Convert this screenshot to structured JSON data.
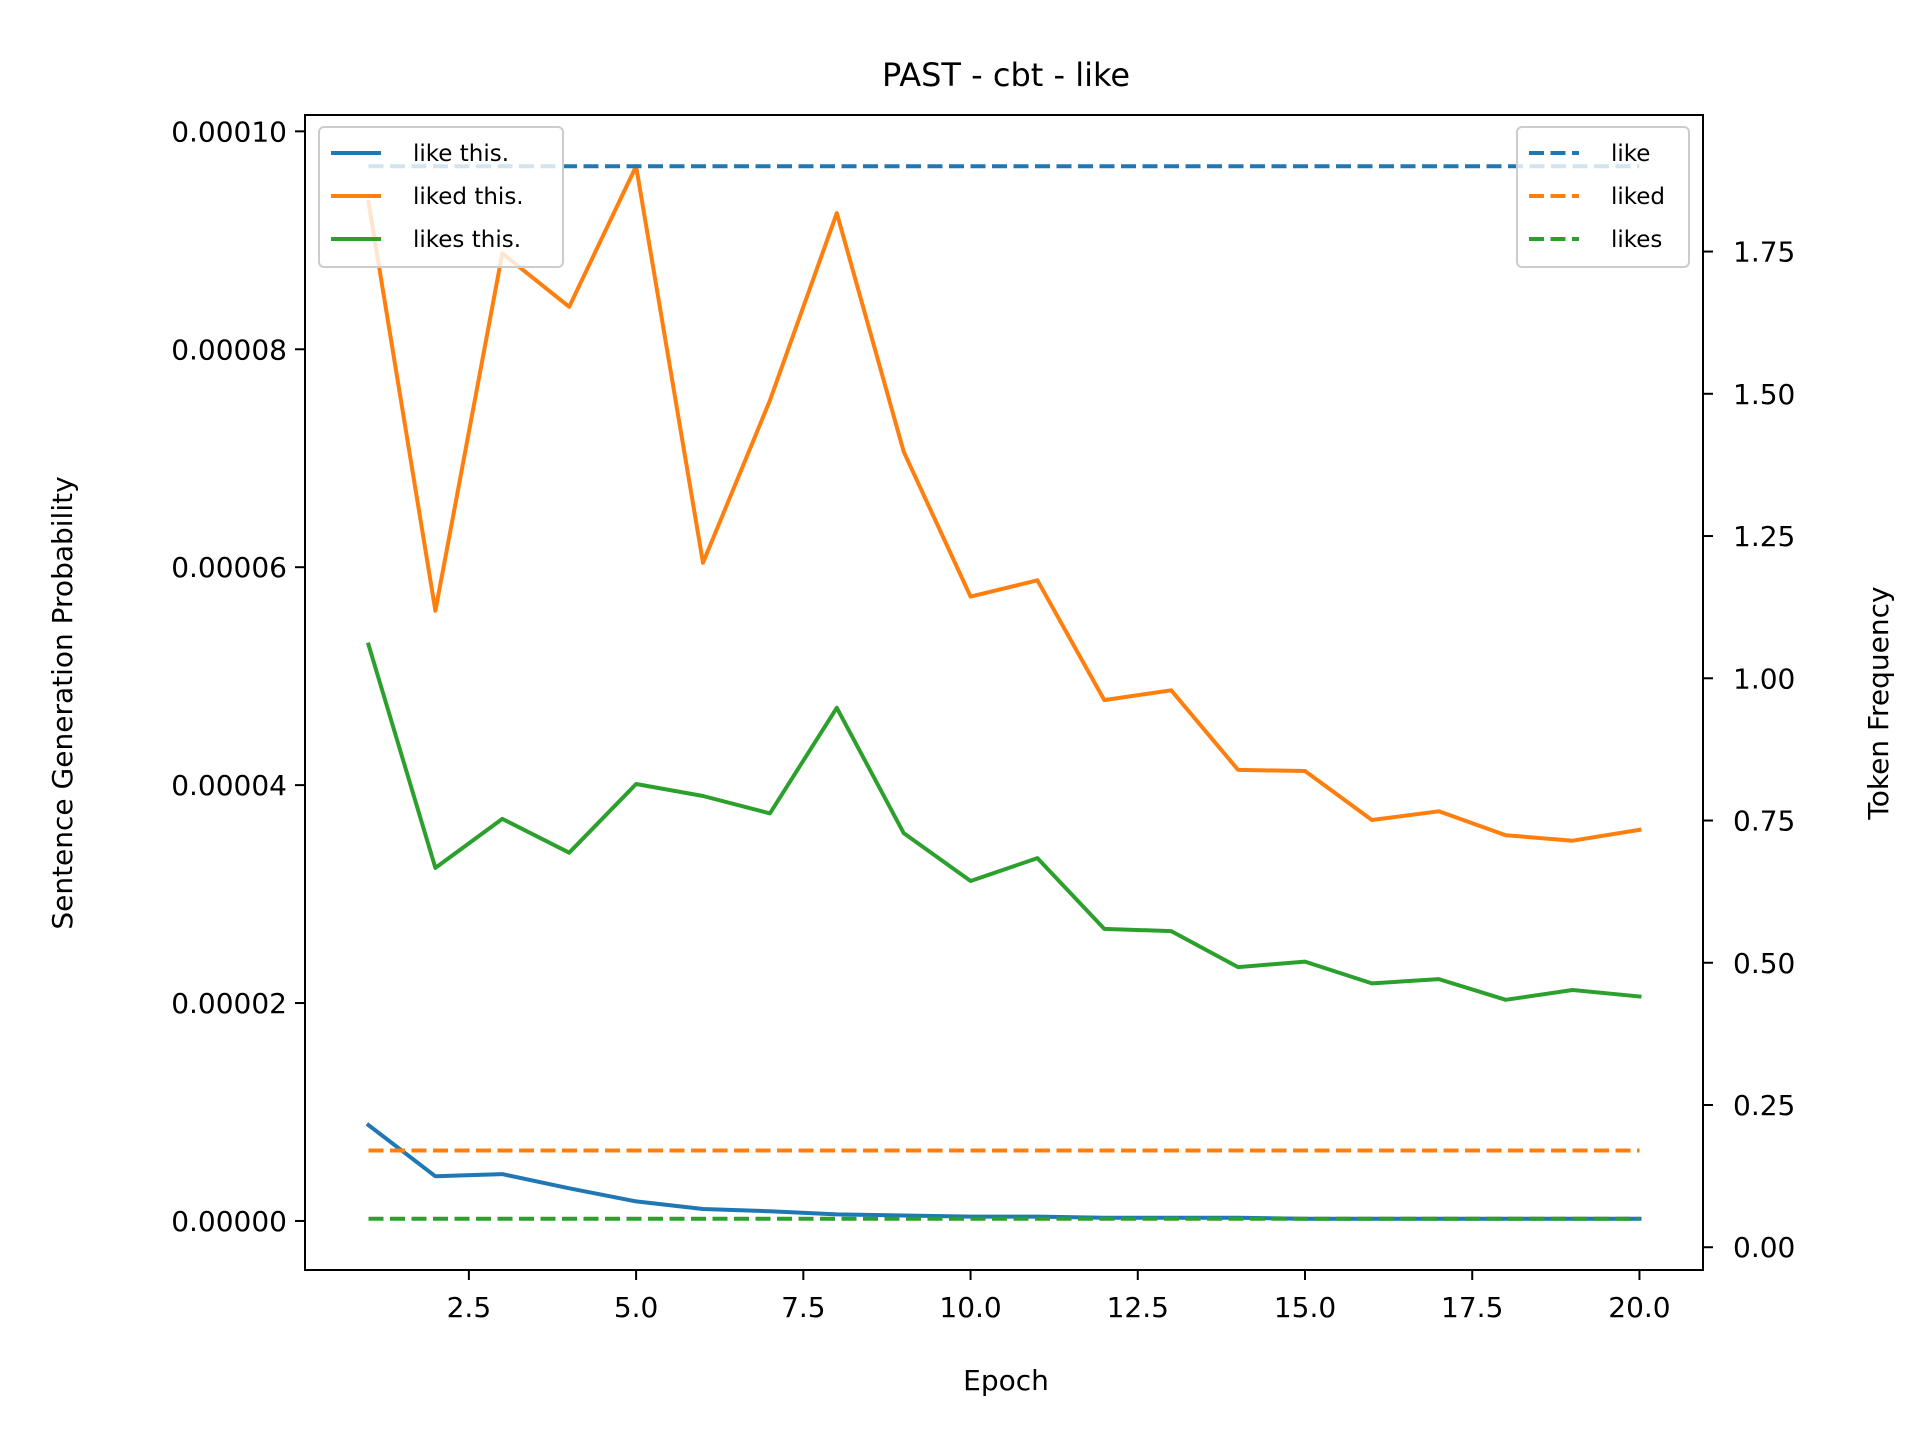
{
  "chart_data": {
    "type": "line",
    "title": "PAST - cbt - like",
    "xlabel": "Epoch",
    "ylabel": "Sentence Generation Probability",
    "y2label": "Token Frequency",
    "xlim": [
      0.05,
      20.95
    ],
    "ylim": [
      -4.5e-06,
      0.0001015
    ],
    "y2lim": [
      -0.04,
      1.99
    ],
    "x_ticks": [
      2.5,
      5.0,
      7.5,
      10.0,
      12.5,
      15.0,
      17.5,
      20.0
    ],
    "x_tick_labels": [
      "2.5",
      "5.0",
      "7.5",
      "10.0",
      "12.5",
      "15.0",
      "17.5",
      "20.0"
    ],
    "y_ticks": [
      0,
      2e-05,
      4e-05,
      6e-05,
      8e-05,
      0.0001
    ],
    "y_tick_labels": [
      "0.00000",
      "0.00002",
      "0.00004",
      "0.00006",
      "0.00008",
      "0.00010"
    ],
    "y2_ticks": [
      0,
      0.25,
      0.5,
      0.75,
      1.0,
      1.25,
      1.5,
      1.75
    ],
    "y2_tick_labels": [
      "0.00",
      "0.25",
      "0.50",
      "0.75",
      "1.00",
      "1.25",
      "1.50",
      "1.75"
    ],
    "grid": false,
    "x": [
      1,
      2,
      3,
      4,
      5,
      6,
      7,
      8,
      9,
      10,
      11,
      12,
      13,
      14,
      15,
      16,
      17,
      18,
      19,
      20
    ],
    "series": [
      {
        "name": "like this.",
        "axis": "left",
        "style": "solid",
        "color": "#1f77b4",
        "values": [
          8.8e-06,
          4.1e-06,
          4.3e-06,
          3e-06,
          1.8e-06,
          1.1e-06,
          9e-07,
          6e-07,
          5e-07,
          4e-07,
          4e-07,
          3e-07,
          3e-07,
          3e-07,
          2e-07,
          2e-07,
          2e-07,
          2e-07,
          2e-07,
          2e-07
        ]
      },
      {
        "name": "liked this.",
        "axis": "left",
        "style": "solid",
        "color": "#ff7f0e",
        "values": [
          9.35e-05,
          5.6e-05,
          8.88e-05,
          8.39e-05,
          9.68e-05,
          6.04e-05,
          7.53e-05,
          9.25e-05,
          7.06e-05,
          5.73e-05,
          5.88e-05,
          4.78e-05,
          4.87e-05,
          4.14e-05,
          4.13e-05,
          3.68e-05,
          3.76e-05,
          3.54e-05,
          3.49e-05,
          3.59e-05
        ]
      },
      {
        "name": "likes this.",
        "axis": "left",
        "style": "solid",
        "color": "#2ca02c",
        "values": [
          5.29e-05,
          3.24e-05,
          3.69e-05,
          3.38e-05,
          4.01e-05,
          3.9e-05,
          3.74e-05,
          4.71e-05,
          3.56e-05,
          3.12e-05,
          3.33e-05,
          2.68e-05,
          2.66e-05,
          2.33e-05,
          2.38e-05,
          2.18e-05,
          2.22e-05,
          2.03e-05,
          2.12e-05,
          2.06e-05
        ]
      },
      {
        "name": "like",
        "axis": "right",
        "style": "dashed",
        "color": "#1f77b4",
        "values": [
          1.9,
          1.9,
          1.9,
          1.9,
          1.9,
          1.9,
          1.9,
          1.9,
          1.9,
          1.9,
          1.9,
          1.9,
          1.9,
          1.9,
          1.9,
          1.9,
          1.9,
          1.9,
          1.9,
          1.9
        ]
      },
      {
        "name": "liked",
        "axis": "right",
        "style": "dashed",
        "color": "#ff7f0e",
        "values": [
          0.17,
          0.17,
          0.17,
          0.17,
          0.17,
          0.17,
          0.17,
          0.17,
          0.17,
          0.17,
          0.17,
          0.17,
          0.17,
          0.17,
          0.17,
          0.17,
          0.17,
          0.17,
          0.17,
          0.17
        ]
      },
      {
        "name": "likes",
        "axis": "right",
        "style": "dashed",
        "color": "#2ca02c",
        "values": [
          0.05,
          0.05,
          0.05,
          0.05,
          0.05,
          0.05,
          0.05,
          0.05,
          0.05,
          0.05,
          0.05,
          0.05,
          0.05,
          0.05,
          0.05,
          0.05,
          0.05,
          0.05,
          0.05,
          0.05
        ]
      }
    ],
    "legends": [
      {
        "position": "upper-left",
        "entries": [
          "like this.",
          "liked this.",
          "likes this."
        ]
      },
      {
        "position": "upper-right",
        "entries": [
          "like",
          "liked",
          "likes"
        ]
      }
    ]
  }
}
